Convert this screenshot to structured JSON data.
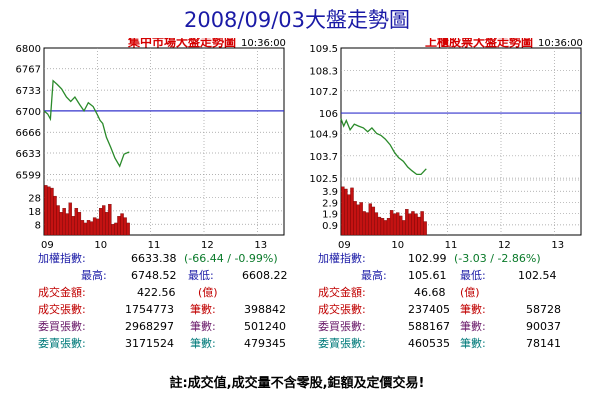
{
  "page_title": "2008/09/03大盤走勢圖",
  "note": "註:成交值,成交量不含零股,鉅額及定價交易!",
  "chart_data": [
    {
      "type": "line",
      "title": "集中市場大盤走勢圖",
      "time": "10:36:00",
      "x_ticks": [
        "09",
        "10",
        "11",
        "12",
        "13"
      ],
      "x_tick_hours": [
        9,
        10,
        11,
        12,
        13
      ],
      "xlim": [
        9,
        13.5
      ],
      "price_ticks": [
        "6800",
        "6767",
        "6733",
        "6700",
        "6666",
        "6633",
        "6599"
      ],
      "price_tick_values": [
        6800,
        6767,
        6733,
        6700,
        6666,
        6633,
        6599
      ],
      "ylim": [
        6590,
        6800
      ],
      "reference": 6700,
      "price_series": {
        "x": [
          9.0,
          9.07,
          9.12,
          9.17,
          9.25,
          9.33,
          9.42,
          9.5,
          9.58,
          9.67,
          9.75,
          9.83,
          9.92,
          10.0,
          10.05,
          10.1,
          10.17,
          10.25,
          10.33,
          10.42,
          10.5,
          10.58,
          10.6
        ],
        "y": [
          6700,
          6695,
          6687,
          6748,
          6742,
          6735,
          6722,
          6715,
          6722,
          6710,
          6700,
          6713,
          6707,
          6694,
          6685,
          6680,
          6658,
          6642,
          6625,
          6612,
          6631,
          6634,
          6634
        ]
      },
      "volume_ticks": [
        "28",
        "18",
        "8"
      ],
      "volume_tick_values": [
        28,
        18,
        8
      ],
      "volume_ylim": [
        0,
        41
      ],
      "volume_bars": [
        37,
        36,
        35,
        29,
        22,
        17,
        20,
        16,
        24,
        14,
        20,
        17,
        11,
        9,
        11,
        10,
        13,
        12,
        20,
        22,
        17,
        23,
        8,
        9,
        14,
        16,
        13,
        9
      ],
      "stats": {
        "index_label": "加權指數:",
        "index_value": "6633.38",
        "change": "(-66.44 / -0.99%)",
        "high_label": "最高:",
        "high_value": "6748.52",
        "low_label": "最低:",
        "low_value": "6608.22",
        "amount_label": "成交金額:",
        "amount_value": "422.56",
        "amount_unit": "(億)",
        "rows": [
          {
            "label": "成交張數:",
            "value": "1754773",
            "count_label": "筆數:",
            "count_value": "398842",
            "color": "red"
          },
          {
            "label": "委買張數:",
            "value": "2968297",
            "count_label": "筆數:",
            "count_value": "501240",
            "color": "purple"
          },
          {
            "label": "委賣張數:",
            "value": "3171524",
            "count_label": "筆數:",
            "count_value": "479345",
            "color": "teal"
          }
        ]
      }
    },
    {
      "type": "line",
      "title": "上櫃股票大盤走勢圖",
      "time": "10:36:00",
      "x_ticks": [
        "09",
        "10",
        "11",
        "12",
        "13"
      ],
      "x_tick_hours": [
        9,
        10,
        11,
        12,
        13
      ],
      "xlim": [
        9,
        13.5
      ],
      "price_ticks": [
        "109.5",
        "108.3",
        "107.2",
        "106",
        "104.9",
        "103.7",
        "102.5"
      ],
      "price_tick_values": [
        109.5,
        108.3,
        107.2,
        106,
        104.9,
        103.7,
        102.5
      ],
      "ylim": [
        102.4,
        109.5
      ],
      "reference": 106,
      "price_series": {
        "x": [
          9.0,
          9.05,
          9.1,
          9.17,
          9.25,
          9.33,
          9.42,
          9.5,
          9.58,
          9.67,
          9.75,
          9.83,
          9.92,
          10.0,
          10.08,
          10.17,
          10.25,
          10.33,
          10.42,
          10.5,
          10.58,
          10.6
        ],
        "y": [
          105.7,
          105.3,
          105.6,
          105.1,
          105.4,
          105.3,
          105.2,
          105.0,
          105.2,
          104.9,
          104.8,
          104.6,
          104.3,
          103.9,
          103.6,
          103.4,
          103.1,
          102.9,
          102.7,
          102.7,
          102.95,
          103.0
        ]
      },
      "volume_ticks": [
        "3.9",
        "2.9",
        "1.9",
        "0.9"
      ],
      "volume_tick_values": [
        3.9,
        2.9,
        1.9,
        0.9
      ],
      "volume_ylim": [
        0,
        4.9
      ],
      "volume_bars": [
        4.3,
        4.1,
        3.6,
        4.2,
        3.0,
        2.7,
        2.9,
        2.1,
        2.0,
        2.8,
        2.5,
        2.0,
        1.6,
        1.5,
        1.3,
        1.5,
        2.2,
        1.9,
        2.0,
        1.7,
        1.3,
        2.3,
        1.9,
        2.1,
        1.9,
        1.6,
        2.1,
        1.2
      ],
      "stats": {
        "index_label": "加權指數:",
        "index_value": "102.99",
        "change": "(-3.03 / -2.86%)",
        "high_label": "最高:",
        "high_value": "105.61",
        "low_label": "最低:",
        "low_value": "102.54",
        "amount_label": "成交金額:",
        "amount_value": "46.68",
        "amount_unit": "(億)",
        "rows": [
          {
            "label": "成交張數:",
            "value": "237405",
            "count_label": "筆數:",
            "count_value": "58728",
            "color": "red"
          },
          {
            "label": "委買張數:",
            "value": "588167",
            "count_label": "筆數:",
            "count_value": "90037",
            "color": "purple"
          },
          {
            "label": "委賣張數:",
            "value": "460535",
            "count_label": "筆數:",
            "count_value": "78141",
            "color": "teal"
          }
        ]
      }
    }
  ],
  "colors": {
    "title": "#1a1aa6",
    "chart_title": "#d40000",
    "price_line": "#2a8a2a",
    "reference_line": "#3333cc",
    "volume_bar": "#c41212",
    "grid": "#9a9a9a"
  }
}
